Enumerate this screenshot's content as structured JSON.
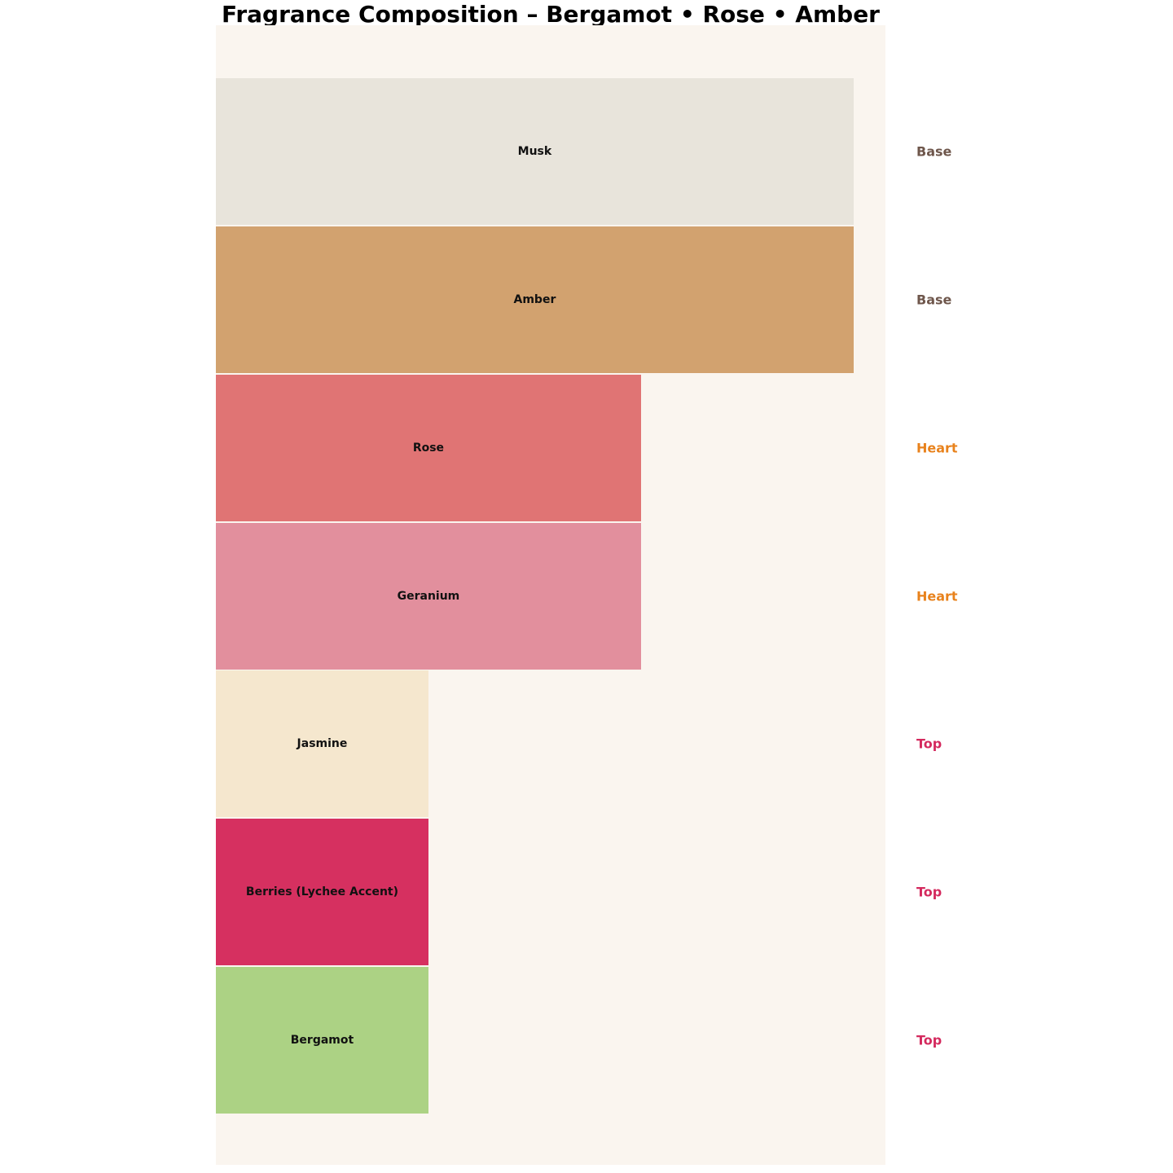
{
  "chart_data": {
    "type": "bar",
    "orientation": "horizontal",
    "title": "Fragrance Composition – Bergamot • Rose • Amber",
    "xlabel": "",
    "ylabel": "",
    "xlim": [
      0,
      3.15
    ],
    "grid": false,
    "legend_position": "none",
    "plot_background": "#faf5ef",
    "categories": [
      "Musk",
      "Amber",
      "Rose",
      "Geranium",
      "Jasmine",
      "Berries (Lychee Accent)",
      "Bergamot"
    ],
    "values": [
      3,
      3,
      2,
      2,
      1,
      1,
      1
    ],
    "items": [
      {
        "label": "Musk",
        "value": 3,
        "category": "Base",
        "color": "#e8e4db",
        "category_color": "#6e564b"
      },
      {
        "label": "Amber",
        "value": 3,
        "category": "Base",
        "color": "#d2a26f",
        "category_color": "#6e564b"
      },
      {
        "label": "Rose",
        "value": 2,
        "category": "Heart",
        "color": "#e07474",
        "category_color": "#e8821c"
      },
      {
        "label": "Geranium",
        "value": 2,
        "category": "Heart",
        "color": "#e28f9d",
        "category_color": "#e8821c"
      },
      {
        "label": "Jasmine",
        "value": 1,
        "category": "Top",
        "color": "#f5e7ce",
        "category_color": "#d42a5e"
      },
      {
        "label": "Berries (Lychee Accent)",
        "value": 1,
        "category": "Top",
        "color": "#d63060",
        "category_color": "#d42a5e"
      },
      {
        "label": "Bergamot",
        "value": 1,
        "category": "Top",
        "color": "#acd284",
        "category_color": "#d42a5e"
      }
    ]
  }
}
